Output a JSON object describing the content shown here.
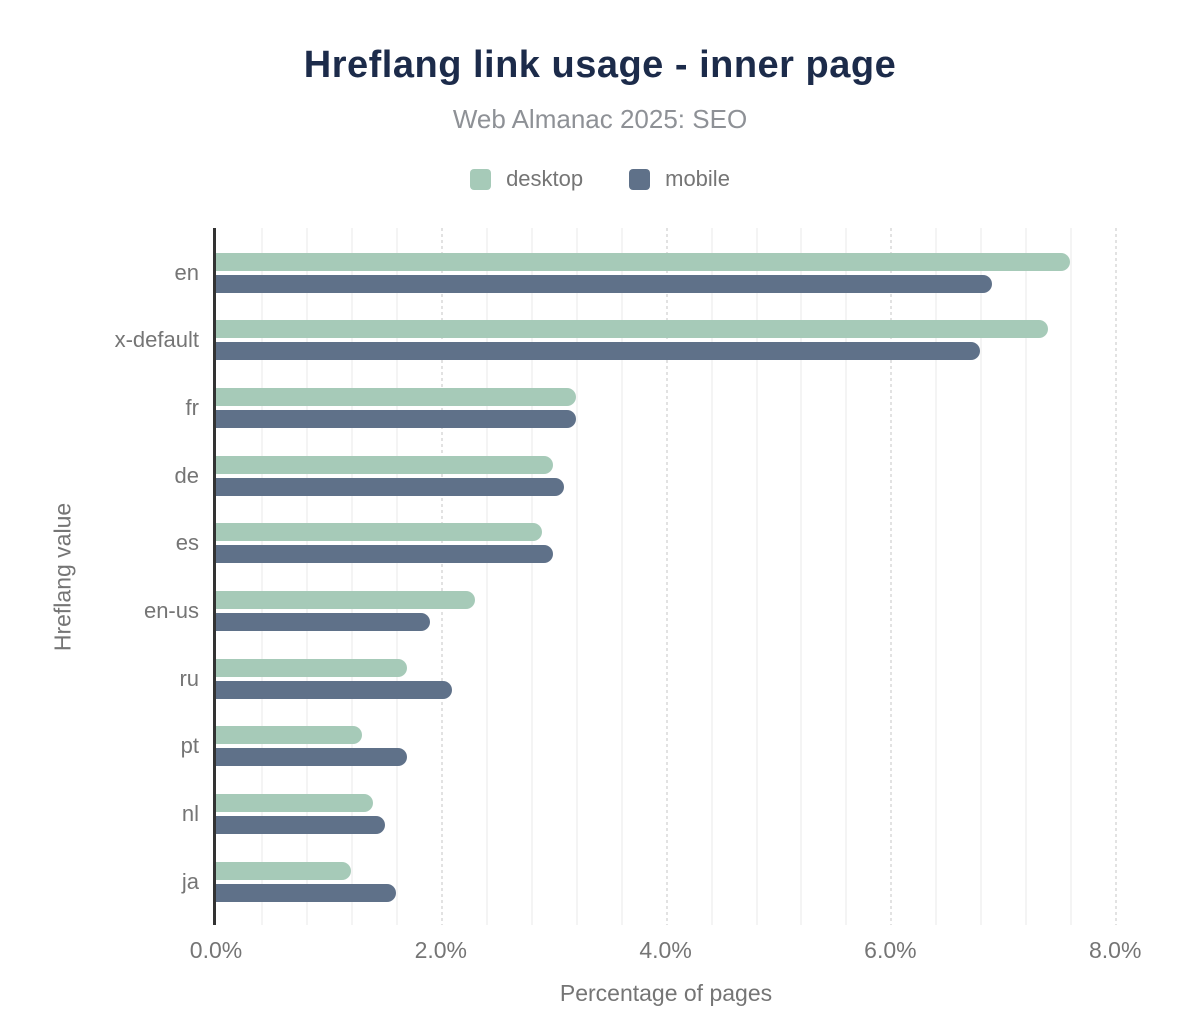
{
  "title": "Hreflang link usage - inner page",
  "subtitle": "Web Almanac 2025: SEO",
  "colors": {
    "title": "#1c2b4a",
    "subtitle": "#8e9196",
    "axis_text": "#757575",
    "axis_line": "#333333",
    "gridline_minor": "#f4f4f4",
    "gridline_major": "#e2e2e2",
    "desktop": "#a6cab8",
    "mobile": "#5f7189"
  },
  "chart_data": {
    "type": "bar",
    "orientation": "horizontal",
    "title": "Hreflang link usage - inner page",
    "subtitle": "Web Almanac 2025: SEO",
    "xlabel": "Percentage of pages",
    "ylabel": "Hreflang value",
    "unit": "%",
    "xlim": [
      0,
      8
    ],
    "x_tick_values": [
      0,
      2,
      4,
      6,
      8
    ],
    "x_ticks": [
      "0.0%",
      "2.0%",
      "4.0%",
      "6.0%",
      "8.0%"
    ],
    "grid": "vertical, minor every 0.4, major dotted at ticks",
    "legend_position": "top",
    "categories": [
      "en",
      "x-default",
      "fr",
      "de",
      "es",
      "en-us",
      "ru",
      "pt",
      "nl",
      "ja"
    ],
    "series": [
      {
        "name": "desktop",
        "color": "#a6cab8",
        "values": [
          7.6,
          7.4,
          3.2,
          3.0,
          2.9,
          2.3,
          1.7,
          1.3,
          1.4,
          1.2
        ]
      },
      {
        "name": "mobile",
        "color": "#5f7189",
        "values": [
          6.9,
          6.8,
          3.2,
          3.1,
          3.0,
          1.9,
          2.1,
          1.7,
          1.5,
          1.6
        ]
      }
    ]
  }
}
